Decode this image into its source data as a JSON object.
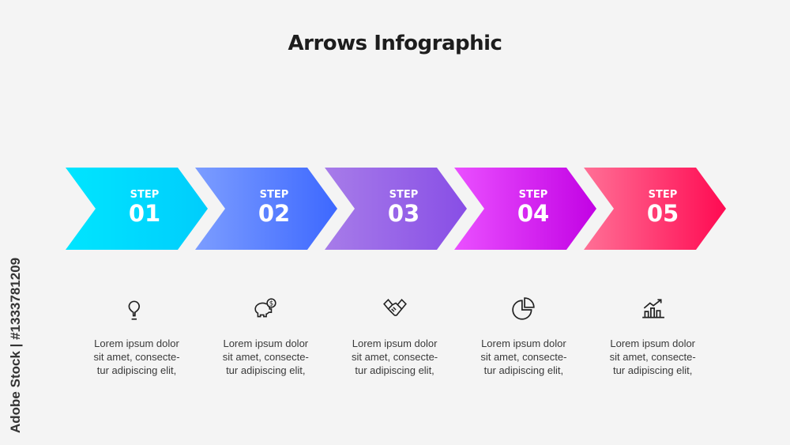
{
  "title": "Arrows Infographic",
  "steps": [
    {
      "label": "STEP",
      "number": "01",
      "colors": [
        "#00e5ff",
        "#00cdfc"
      ],
      "icon": "lightbulb-icon",
      "text": [
        "Lorem ipsum dolor",
        "sit amet, consecte-",
        "tur adipiscing elit,"
      ]
    },
    {
      "label": "STEP",
      "number": "02",
      "colors": [
        "#7c9dff",
        "#3d68ff"
      ],
      "icon": "piggy-bank-icon",
      "text": [
        "Lorem ipsum dolor",
        "sit amet, consecte-",
        "tur adipiscing elit,"
      ]
    },
    {
      "label": "STEP",
      "number": "03",
      "colors": [
        "#a77ce9",
        "#884ee6"
      ],
      "icon": "handshake-icon",
      "text": [
        "Lorem ipsum dolor",
        "sit amet, consecte-",
        "tur adipiscing elit,"
      ]
    },
    {
      "label": "STEP",
      "number": "04",
      "colors": [
        "#ea50ff",
        "#c202e4"
      ],
      "icon": "pie-chart-icon",
      "text": [
        "Lorem ipsum dolor",
        "sit amet, consecte-",
        "tur adipiscing elit,"
      ]
    },
    {
      "label": "STEP",
      "number": "05",
      "colors": [
        "#ff7096",
        "#ff0a52"
      ],
      "icon": "bar-chart-growth-icon",
      "text": [
        "Lorem ipsum dolor",
        "sit amet, consecte-",
        "tur adipiscing elit,"
      ]
    }
  ],
  "watermark": "Adobe Stock | #1333781209"
}
